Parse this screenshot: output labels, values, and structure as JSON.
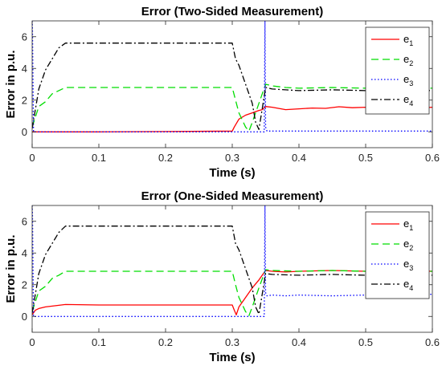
{
  "chart_data": [
    {
      "type": "line",
      "title": "Error (Two-Sided Measurement)",
      "xlabel": "Time (s)",
      "ylabel": "Error in p.u.",
      "xlim": [
        0,
        0.6
      ],
      "ylim": [
        -1,
        7
      ],
      "xticks": [
        0,
        0.1,
        0.2,
        0.3,
        0.4,
        0.5,
        0.6
      ],
      "xtick_labels": [
        "0",
        "0.1",
        "0.2",
        "0.3",
        "0.4",
        "0.5",
        "0.6"
      ],
      "yticks": [
        0,
        2,
        4,
        6
      ],
      "ytick_labels": [
        "0",
        "2",
        "4",
        "6"
      ],
      "grid": false,
      "legend_position": "top-right",
      "series": [
        {
          "name": "e1",
          "color": "#ff0000",
          "dash": "solid",
          "x": [
            0,
            0.1,
            0.2,
            0.3,
            0.303,
            0.31,
            0.32,
            0.33,
            0.34,
            0.345,
            0.35,
            0.36,
            0.38,
            0.4,
            0.42,
            0.44,
            0.46,
            0.48,
            0.5,
            0.52,
            0.54,
            0.56,
            0.58,
            0.6
          ],
          "y": [
            0,
            0,
            0.02,
            0.05,
            0.3,
            0.8,
            1.05,
            1.2,
            1.35,
            1.4,
            1.6,
            1.55,
            1.4,
            1.45,
            1.5,
            1.48,
            1.58,
            1.52,
            1.55,
            1.52,
            1.6,
            1.55,
            1.5,
            1.55
          ]
        },
        {
          "name": "e2",
          "color": "#00dd00",
          "dash": "long-dash",
          "x": [
            0,
            0.01,
            0.02,
            0.03,
            0.04,
            0.05,
            0.1,
            0.2,
            0.3,
            0.305,
            0.31,
            0.32,
            0.325,
            0.33,
            0.34,
            0.35,
            0.36,
            0.38,
            0.4,
            0.45,
            0.5,
            0.55,
            0.6
          ],
          "y": [
            0.3,
            1.6,
            1.9,
            2.4,
            2.6,
            2.8,
            2.8,
            2.8,
            2.8,
            2.0,
            1.2,
            0.3,
            0.05,
            0.6,
            1.8,
            3.0,
            2.9,
            2.8,
            2.75,
            2.8,
            2.75,
            2.8,
            2.75
          ]
        },
        {
          "name": "e3",
          "color": "#0000ff",
          "dash": "dotted",
          "x": [
            0,
            0.0005,
            0.002,
            0.348,
            0.349,
            0.35,
            0.352,
            0.36,
            0.4,
            0.5,
            0.6
          ],
          "y": [
            7,
            6.5,
            0,
            0,
            7,
            0.3,
            0.05,
            0.05,
            0.05,
            0.05,
            0.05
          ]
        },
        {
          "name": "e4",
          "color": "#000000",
          "dash": "dash-dot",
          "x": [
            0,
            0.01,
            0.02,
            0.03,
            0.04,
            0.05,
            0.1,
            0.2,
            0.3,
            0.305,
            0.31,
            0.32,
            0.33,
            0.335,
            0.34,
            0.35,
            0.36,
            0.4,
            0.45,
            0.5,
            0.55,
            0.6
          ],
          "y": [
            0.2,
            2.7,
            3.9,
            4.6,
            5.3,
            5.6,
            5.6,
            5.6,
            5.6,
            4.6,
            4.2,
            3.0,
            1.8,
            0.6,
            0.15,
            2.8,
            2.7,
            2.6,
            2.65,
            2.6,
            2.65,
            2.6
          ]
        }
      ]
    },
    {
      "type": "line",
      "title": "Error (One-Sided Measurement)",
      "xlabel": "Time (s)",
      "ylabel": "Error in p.u.",
      "xlim": [
        0,
        0.6
      ],
      "ylim": [
        -1,
        7
      ],
      "xticks": [
        0,
        0.1,
        0.2,
        0.3,
        0.4,
        0.5,
        0.6
      ],
      "xtick_labels": [
        "0",
        "0.1",
        "0.2",
        "0.3",
        "0.4",
        "0.5",
        "0.6"
      ],
      "yticks": [
        0,
        2,
        4,
        6
      ],
      "ytick_labels": [
        "0",
        "2",
        "4",
        "6"
      ],
      "grid": false,
      "legend_position": "top-right",
      "series": [
        {
          "name": "e1",
          "color": "#ff0000",
          "dash": "solid",
          "x": [
            0,
            0.005,
            0.01,
            0.02,
            0.03,
            0.04,
            0.05,
            0.1,
            0.2,
            0.3,
            0.303,
            0.306,
            0.31,
            0.32,
            0.33,
            0.34,
            0.345,
            0.35,
            0.36,
            0.38,
            0.4,
            0.45,
            0.5,
            0.55,
            0.6
          ],
          "y": [
            0.1,
            0.4,
            0.5,
            0.6,
            0.65,
            0.7,
            0.75,
            0.72,
            0.72,
            0.72,
            0.4,
            0.1,
            0.6,
            1.2,
            1.8,
            2.3,
            2.6,
            2.9,
            2.85,
            2.8,
            2.85,
            2.9,
            2.85,
            2.9,
            2.85
          ]
        },
        {
          "name": "e2",
          "color": "#00dd00",
          "dash": "long-dash",
          "x": [
            0,
            0.01,
            0.02,
            0.03,
            0.04,
            0.05,
            0.1,
            0.2,
            0.3,
            0.305,
            0.31,
            0.32,
            0.325,
            0.33,
            0.34,
            0.35,
            0.36,
            0.4,
            0.45,
            0.5,
            0.55,
            0.6
          ],
          "y": [
            0.3,
            1.6,
            1.9,
            2.4,
            2.6,
            2.85,
            2.85,
            2.85,
            2.85,
            2.0,
            1.2,
            0.3,
            0.05,
            0.6,
            1.8,
            2.95,
            2.9,
            2.85,
            2.9,
            2.85,
            2.9,
            2.85
          ]
        },
        {
          "name": "e3",
          "color": "#0000ff",
          "dash": "dotted",
          "x": [
            0,
            0.0005,
            0.002,
            0.348,
            0.349,
            0.35,
            0.352,
            0.36,
            0.38,
            0.4,
            0.45,
            0.5,
            0.55,
            0.6
          ],
          "y": [
            7,
            6.5,
            0,
            0,
            7,
            1.5,
            1.3,
            1.35,
            1.3,
            1.35,
            1.3,
            1.35,
            1.3,
            1.4
          ]
        },
        {
          "name": "e4",
          "color": "#000000",
          "dash": "dash-dot",
          "x": [
            0,
            0.01,
            0.02,
            0.03,
            0.04,
            0.05,
            0.1,
            0.2,
            0.3,
            0.305,
            0.31,
            0.32,
            0.33,
            0.335,
            0.34,
            0.35,
            0.36,
            0.4,
            0.45,
            0.5,
            0.55,
            0.6
          ],
          "y": [
            0.2,
            2.7,
            3.9,
            4.6,
            5.3,
            5.7,
            5.7,
            5.7,
            5.7,
            4.6,
            4.2,
            3.0,
            1.8,
            0.6,
            0.15,
            2.7,
            2.65,
            2.6,
            2.65,
            2.6,
            2.65,
            2.6
          ]
        }
      ]
    }
  ]
}
